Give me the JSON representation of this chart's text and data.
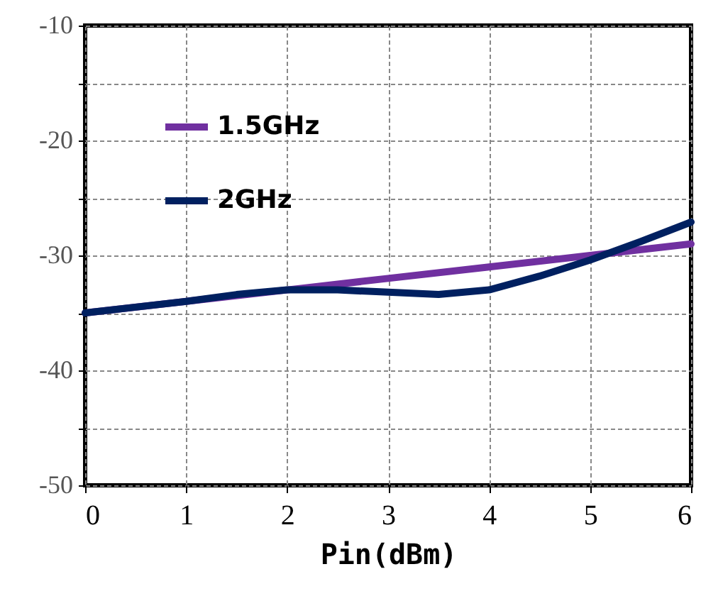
{
  "chart_data": {
    "type": "line",
    "xlabel": "Pin(dBm)",
    "x": [
      0,
      0.5,
      1,
      1.5,
      2,
      2.5,
      3,
      3.5,
      4,
      4.5,
      5,
      5.5,
      6
    ],
    "series": [
      {
        "name": "1.5GHz",
        "color": "#7030a0",
        "x": [
          0,
          1,
          2,
          3,
          4,
          5,
          6
        ],
        "values": [
          -35,
          -34,
          -33,
          -32,
          -31,
          -30,
          -29
        ]
      },
      {
        "name": "2GHz",
        "color": "#002060",
        "values": [
          -35,
          -34.5,
          -34,
          -33.4,
          -33,
          -33,
          -33.2,
          -33.4,
          -33,
          -31.8,
          -30.4,
          -28.8,
          -27.1
        ]
      }
    ],
    "xlim": [
      0,
      6
    ],
    "xticks": [
      0,
      1,
      2,
      3,
      4,
      5,
      6
    ],
    "ylim": [
      -50,
      -10
    ],
    "yticks": [
      -50,
      {
        "value": -45,
        "label": null
      },
      -40,
      {
        "value": -35,
        "label": null
      },
      -30,
      {
        "value": -25,
        "label": null
      },
      -20,
      {
        "value": -15,
        "label": null
      },
      -10
    ],
    "grid": true,
    "legend": "top left",
    "line_style": "solid"
  }
}
